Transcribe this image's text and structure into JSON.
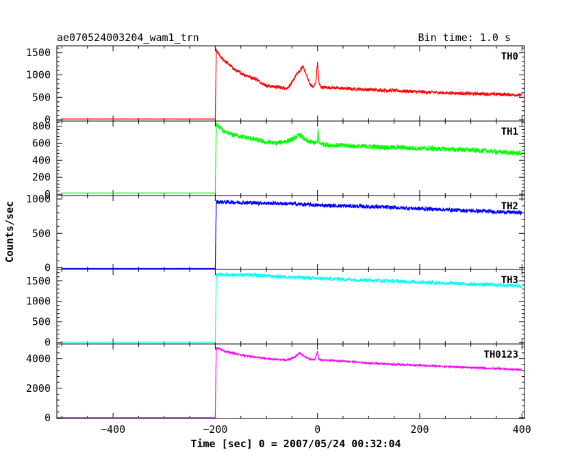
{
  "header": {
    "title": "ae070524003204_wam1_trn",
    "bin_time": "Bin time: 1.0 s"
  },
  "chart_data": {
    "type": "line",
    "title": "ae070524003204_wam1_trn",
    "xlabel": "Time [sec] 0 = 2007/05/24 00:32:04",
    "ylabel": "Counts/sec",
    "xlim": [
      -510,
      405
    ],
    "x_ticks": [
      -400,
      -200,
      0,
      200,
      400
    ],
    "x_tick_labels": [
      "−400",
      "−200",
      "0",
      "200",
      "400"
    ],
    "grid": false,
    "panels": [
      {
        "name": "TH0",
        "color": "#ff0000",
        "ylim": [
          -30,
          1650
        ],
        "yticks": [
          0,
          500,
          1000,
          1500
        ],
        "ytick_labels": [
          "0",
          "500",
          "1000",
          "1500"
        ],
        "noise": 35,
        "x": [
          -500,
          -201,
          -200,
          -198,
          -190,
          -175,
          -160,
          -140,
          -120,
          -100,
          -80,
          -60,
          -50,
          -42,
          -35,
          -28,
          -22,
          -15,
          -8,
          -3,
          0,
          3,
          8,
          20,
          50,
          100,
          150,
          200,
          250,
          300,
          350,
          400
        ],
        "y": [
          15,
          15,
          15,
          1550,
          1400,
          1250,
          1100,
          990,
          900,
          760,
          730,
          700,
          820,
          1000,
          1080,
          1200,
          1000,
          800,
          720,
          850,
          1300,
          800,
          720,
          720,
          700,
          670,
          650,
          620,
          600,
          580,
          570,
          550
        ]
      },
      {
        "name": "TH1",
        "color": "#00ff00",
        "ylim": [
          -15,
          860
        ],
        "yticks": [
          0,
          200,
          400,
          600,
          800
        ],
        "ytick_labels": [
          "0",
          "200",
          "400",
          "600",
          "800"
        ],
        "noise": 28,
        "x": [
          -500,
          -201,
          -200,
          -198,
          -180,
          -150,
          -120,
          -100,
          -80,
          -50,
          -35,
          -20,
          0,
          1,
          3,
          20,
          100,
          200,
          300,
          400
        ],
        "y": [
          15,
          15,
          15,
          820,
          720,
          680,
          640,
          610,
          600,
          640,
          700,
          620,
          600,
          760,
          600,
          580,
          560,
          540,
          520,
          480
        ]
      },
      {
        "name": "TH2",
        "color": "#0000ff",
        "ylim": [
          -25,
          1050
        ],
        "yticks": [
          0,
          500,
          1000
        ],
        "ytick_labels": [
          "0",
          "500",
          "1000"
        ],
        "noise": 28,
        "x": [
          -500,
          -201,
          -200,
          -198,
          -150,
          -100,
          -50,
          0,
          100,
          200,
          300,
          400
        ],
        "y": [
          -10,
          -10,
          -10,
          960,
          950,
          940,
          930,
          910,
          890,
          860,
          830,
          800
        ]
      },
      {
        "name": "TH3",
        "color": "#00ffff",
        "ylim": [
          -40,
          1780
        ],
        "yticks": [
          0,
          500,
          1000,
          1500
        ],
        "ytick_labels": [
          "0",
          "500",
          "1000",
          "1500"
        ],
        "noise": 45,
        "x": [
          -500,
          -201,
          -200,
          -198,
          -150,
          -100,
          0,
          100,
          200,
          300,
          400
        ],
        "y": [
          5,
          5,
          5,
          1650,
          1650,
          1620,
          1560,
          1520,
          1470,
          1420,
          1380
        ]
      },
      {
        "name": "TH0123",
        "color": "#ff00ff",
        "ylim": [
          -50,
          5000
        ],
        "yticks": [
          0,
          2000,
          4000
        ],
        "ytick_labels": [
          "0",
          "2000",
          "4000"
        ],
        "noise": 55,
        "x": [
          -500,
          -201,
          -200,
          -198,
          -180,
          -150,
          -100,
          -60,
          -45,
          -35,
          -28,
          -15,
          -5,
          0,
          3,
          8,
          50,
          100,
          200,
          300,
          400
        ],
        "y": [
          10,
          10,
          10,
          4750,
          4500,
          4250,
          4000,
          3900,
          4100,
          4400,
          4200,
          3950,
          3950,
          4500,
          3950,
          3900,
          3850,
          3700,
          3550,
          3400,
          3250
        ]
      }
    ]
  }
}
